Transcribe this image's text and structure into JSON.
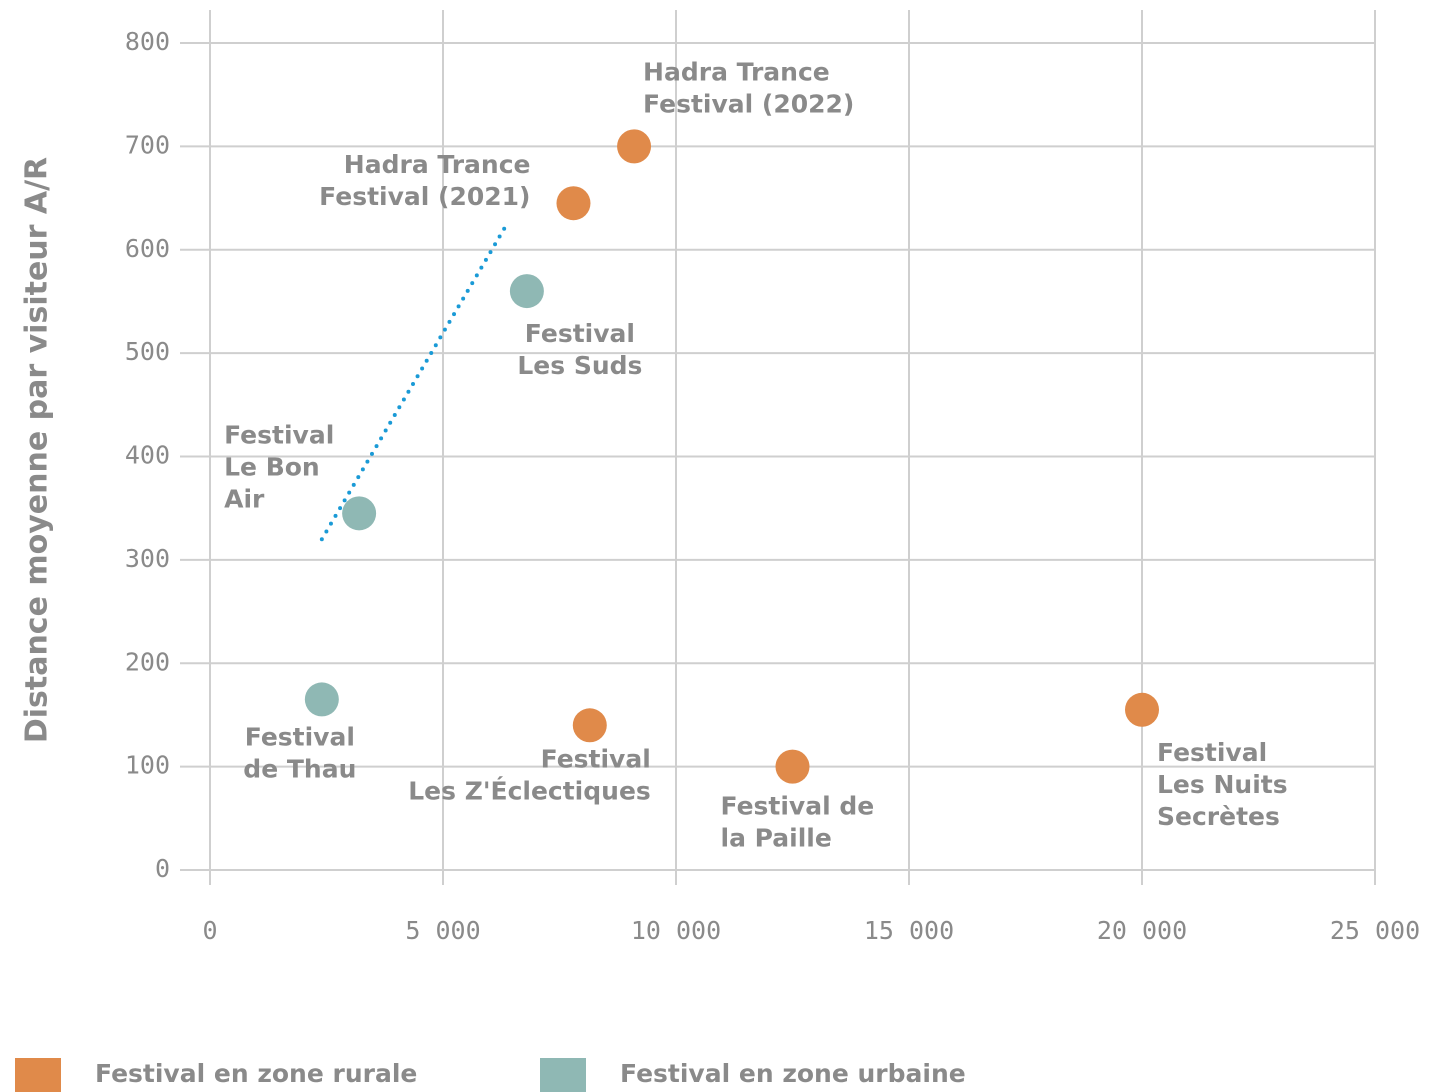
{
  "chart_data": {
    "type": "scatter",
    "y_label": "Distance moyenne  par visiteur A/R",
    "xlim": [
      0,
      25000
    ],
    "ylim": [
      0,
      800
    ],
    "xticks": [
      0,
      {
        "value": 5000,
        "label": "5 000"
      },
      {
        "value": 10000,
        "label": "10 000"
      },
      {
        "value": 15000,
        "label": "15 000"
      },
      {
        "value": 20000,
        "label": "20 000"
      },
      {
        "value": 25000,
        "label": "25 000"
      }
    ],
    "yticks": [
      0,
      100,
      200,
      300,
      400,
      500,
      600,
      700,
      800
    ],
    "grid": true,
    "legend": "bottom",
    "series": [
      {
        "name": "Festival en zone rurale",
        "color": "#e08a4a",
        "x": [
          9100,
          7800,
          8150,
          12500,
          20000
        ],
        "values": [
          700,
          645,
          140,
          100,
          155
        ],
        "labels": [
          [
            "Hadra Trance",
            "Festival (2022)"
          ],
          [
            "Hadra Trance",
            "Festival (2021)"
          ],
          [
            "Festival",
            "Les Z'Éclectiques"
          ],
          [
            "Festival de",
            "la Paille"
          ],
          [
            "Festival",
            "Les Nuits",
            "Secrètes"
          ]
        ]
      },
      {
        "name": "Festival en zone urbaine",
        "color": "#8fb8b4",
        "x": [
          6800,
          3200,
          2400
        ],
        "values": [
          560,
          345,
          165
        ],
        "labels": [
          [
            "Festival",
            "Les Suds"
          ],
          [
            "Festival",
            "Le Bon",
            "Air"
          ],
          [
            "Festival",
            "de Thau"
          ]
        ]
      }
    ],
    "trendline": {
      "color": "#1a9ad6",
      "x": [
        2400,
        6400
      ],
      "values": [
        320,
        627
      ]
    }
  }
}
